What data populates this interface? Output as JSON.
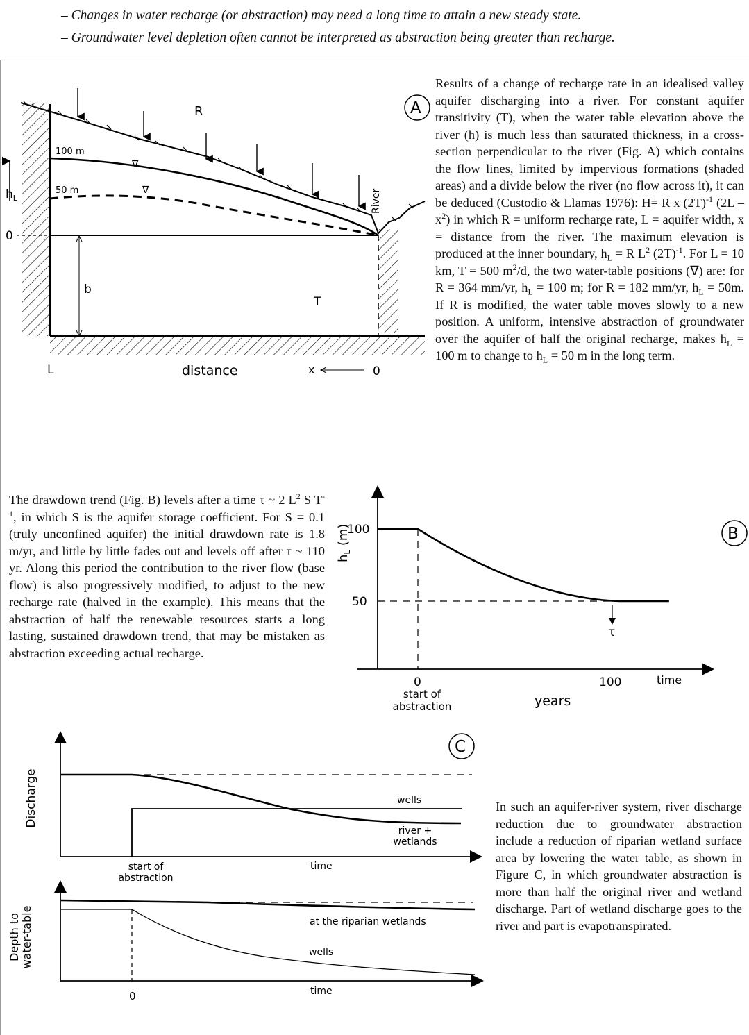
{
  "bullets": [
    "– Changes in water recharge (or abstraction) may need a long time to attain a new steady state.",
    "– Groundwater level depletion often cannot be interpreted as abstraction being greater than recharge."
  ],
  "figA": {
    "badge": "A",
    "recharge_label": "R",
    "level_100": "100 m",
    "level_50": "50 m",
    "axis_hL": "h",
    "axis_hL_sub": "L",
    "zero_label": "0",
    "b_label": "b",
    "T_label": "T",
    "L_label": "L",
    "distance_label": "distance",
    "x_label": "x",
    "x_zero_label": "0",
    "river_label": "River"
  },
  "paraA": {
    "s1": "Results of a change of recharge rate in an idealised valley aquifer discharging into a river. For constant aquifer transitivity (T), when the water table elevation above the river (h) is much less than saturated thickness, in a cross-section perpendicular to the river (Fig. A) which contains the flow lines, limited by impervious formations (shaded areas) and a divide below the river (no flow across it), it can be deduced (Custodio & Llamas 1976): H= R x (2T)",
    "sup1": "-1",
    "s2": " (2L – x",
    "sup2": "2",
    "s3": ") in which R = uniform recharge rate, L = aquifer width, x = distance from the river. The maximum elevation is produced at the inner boundary, h",
    "sub1": "L",
    "s4": " = R L",
    "sup3": "2",
    "s5": " (2T)",
    "sup4": "-1",
    "s6": ". For L = 10 km, T = 500 m",
    "sup5": "2",
    "s7": "/d, the two water-table positions (∇) are: for R = 364 mm/yr, h",
    "sub2": "L",
    "s8": " = 100 m; for R = 182 mm/yr, h",
    "sub3": "L",
    "s9": " = 50m. If R is modified, the water table moves slowly to a new position. A uniform, intensive abstraction of groundwater over the aquifer of half the original recharge, makes h",
    "sub4": "L",
    "s10": " = 100 m to change to h",
    "sub5": "L",
    "s11": " = 50 m in the long term."
  },
  "paraB": {
    "s1": "The drawdown trend (Fig. B) levels after a time τ ~ 2 L",
    "sup1": "2",
    "s2": " S T",
    "sup2": "-1",
    "s3": ", in which S is the aquifer storage coefficient. For S = 0.1 (truly unconfined aquifer) the initial drawdown rate is 1.8 m/yr, and little by little fades out and levels off after τ ~ 110 yr. Along this period the contribution to the river flow (base flow) is also progressively modified, to adjust to the new recharge rate (halved in the example). This means that the abstraction of half the renewable resources starts a long lasting, sustained drawdown trend, that may be mistaken as abstraction exceeding actual recharge."
  },
  "figB": {
    "badge": "B",
    "y_tick_100": "100",
    "y_tick_50": "50",
    "y_label_main": "h",
    "y_label_sub": "L",
    "y_label_unit": " (m)",
    "x_tick_0": "0",
    "x_tick_100": "100",
    "time_label": "time",
    "years_label": "years",
    "start_label_1": "start of",
    "start_label_2": "abstraction",
    "tau_label": "τ"
  },
  "figC": {
    "badge": "C",
    "discharge_label": "Discharge",
    "depth_label_1": "Depth to",
    "depth_label_2": "water-table",
    "wells_top": "wells",
    "river_label_1": "river +",
    "river_label_2": "wetlands",
    "start_label_1": "start of",
    "start_label_2": "abstraction",
    "time_top": "time",
    "riparian_label": "at the riparian wetlands",
    "wells_bottom": "wells",
    "zero_label": "0",
    "time_bottom": "time"
  },
  "paraC": "In such an aquifer-river system, river discharge reduction due to groundwater abstraction include a reduction of riparian wetland surface area by lowering the water table, as shown in Figure C, in which groundwater abstraction is more than half the original river and wetland discharge. Part of wetland discharge goes to the river and part is evapotranspirated."
}
